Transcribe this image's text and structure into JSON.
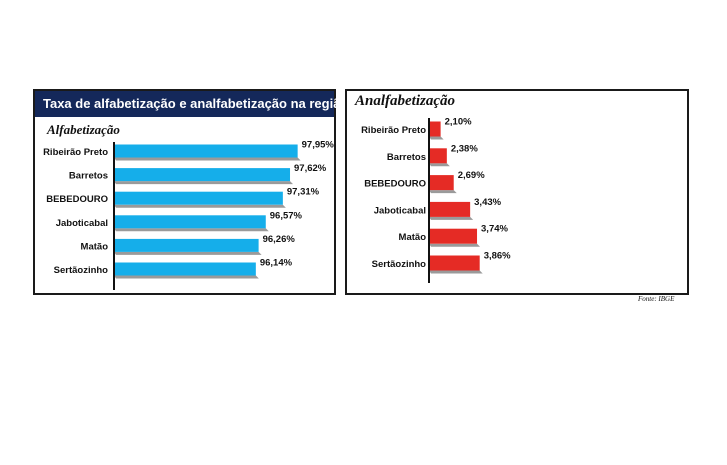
{
  "header": {
    "title": "Taxa de alfabetização e analfabetização na região"
  },
  "source": "Fonte: IBGE",
  "colors": {
    "banner": "#14285a",
    "alfabetizacao_bar": "#15aeea",
    "analfabetizacao_bar": "#e52b25",
    "bar_shadow": "#9a9a9a"
  },
  "chart_data": [
    {
      "type": "bar",
      "orientation": "horizontal",
      "title": "Alfabetização",
      "categories": [
        "Ribeirão Preto",
        "Barretos",
        "BEBEDOURO",
        "Jaboticabal",
        "Matão",
        "Sertãozinho"
      ],
      "values": [
        97.95,
        97.62,
        97.31,
        96.57,
        96.26,
        96.14
      ],
      "labels": [
        "97,95%",
        "97,62%",
        "97,31%",
        "96,57%",
        "96,26%",
        "96,14%"
      ],
      "unit": "%",
      "grid": false,
      "legend": "none"
    },
    {
      "type": "bar",
      "orientation": "horizontal",
      "title": "Analfabetização",
      "categories": [
        "Ribeirão Preto",
        "Barretos",
        "BEBEDOURO",
        "Jaboticabal",
        "Matão",
        "Sertãozinho"
      ],
      "values": [
        2.1,
        2.38,
        2.69,
        3.43,
        3.74,
        3.86
      ],
      "labels": [
        "2,10%",
        "2,38%",
        "2,69%",
        "3,43%",
        "3,74%",
        "3,86%"
      ],
      "unit": "%",
      "grid": false,
      "legend": "none"
    }
  ]
}
